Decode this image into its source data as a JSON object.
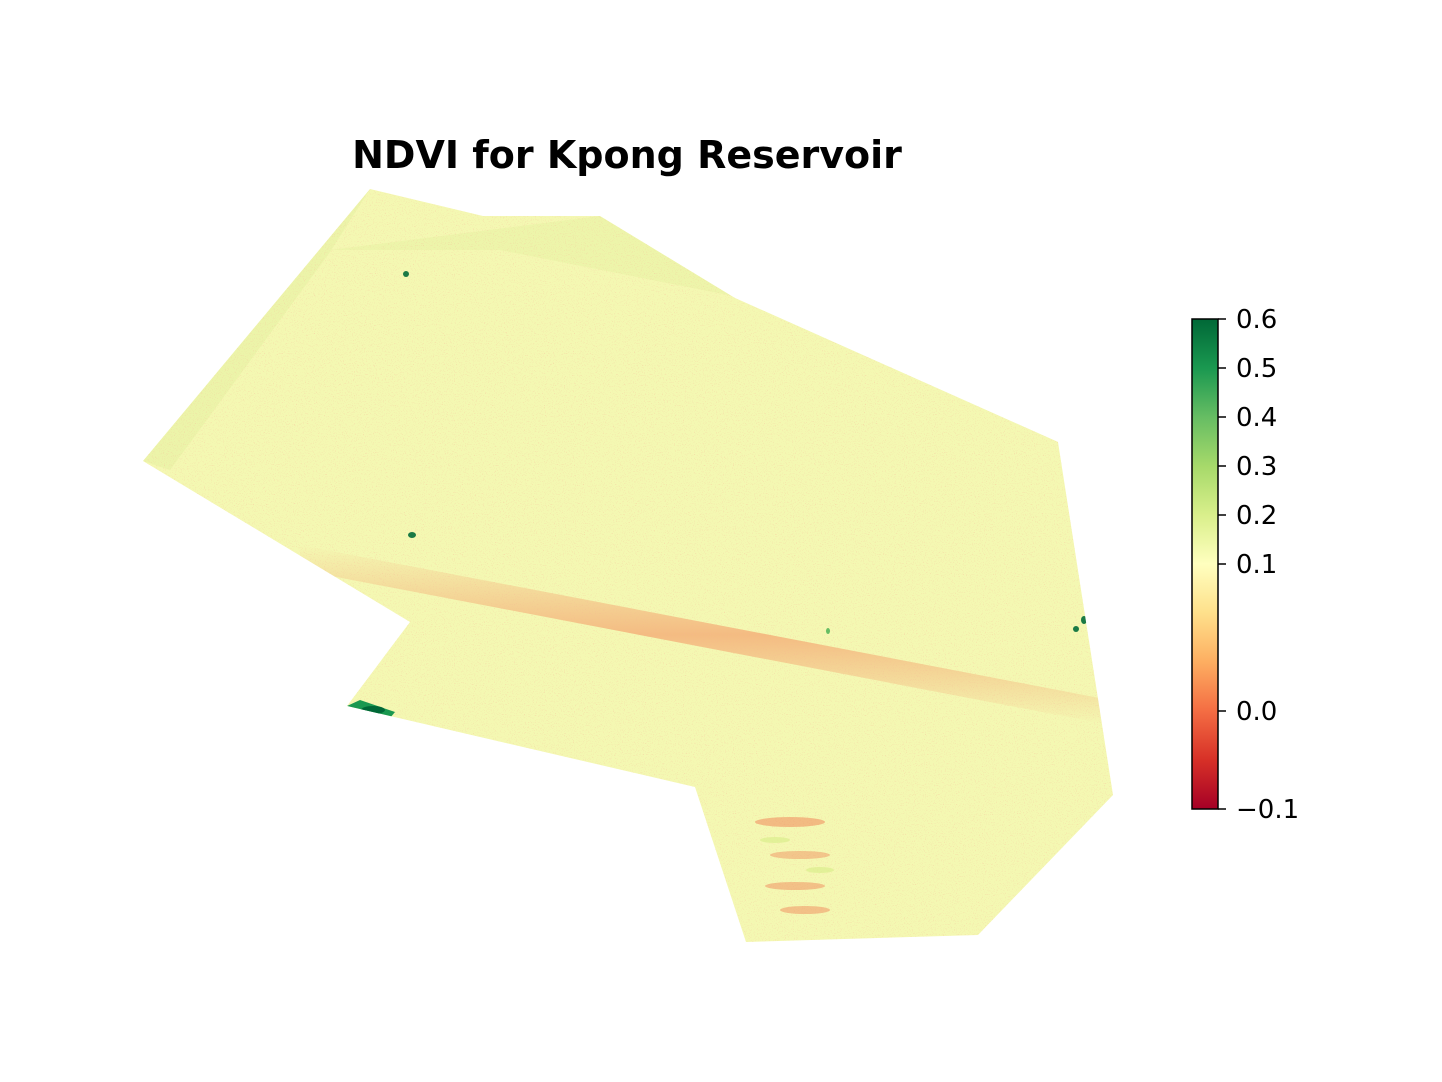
{
  "chart_data": {
    "type": "heatmap",
    "title": "NDVI for Kpong Reservoir",
    "colormap": "RdYlGn",
    "axes_visible": false,
    "colorbar": {
      "vmin": -0.1,
      "vmax": 0.6,
      "scale": "nonlinear (stretched below 0.1)",
      "ticks": [
        0.6,
        0.5,
        0.4,
        0.3,
        0.2,
        0.1,
        0.0,
        -0.1
      ],
      "tick_labels": [
        "0.6",
        "0.5",
        "0.4",
        "0.3",
        "0.2",
        "0.1",
        "0.0",
        "−0.1"
      ],
      "colors": [
        "#a50026",
        "#d73027",
        "#f46d43",
        "#fdae61",
        "#fee08b",
        "#ffffbf",
        "#d9ef8b",
        "#a6d96a",
        "#66bd63",
        "#1a9850",
        "#006837"
      ]
    },
    "dominant_ndvi": 0.28,
    "features": [
      {
        "name": "low-NDVI diagonal band",
        "ndvi": 0.1
      },
      {
        "name": "vegetation patch",
        "ndvi": 0.6
      }
    ]
  }
}
